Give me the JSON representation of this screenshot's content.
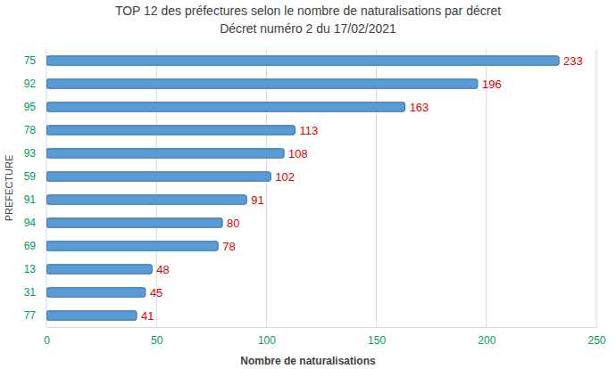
{
  "chart_data": {
    "type": "bar",
    "orientation": "horizontal",
    "title": "TOP 12 des préfectures selon le nombre de naturalisations par décret",
    "subtitle": "Décret numéro 2 du 17/02/2021",
    "xlabel": "Nombre de naturalisations",
    "ylabel": "PREFECTURE",
    "categories": [
      "75",
      "92",
      "95",
      "78",
      "93",
      "59",
      "91",
      "94",
      "69",
      "13",
      "31",
      "77"
    ],
    "values": [
      233,
      196,
      163,
      113,
      108,
      102,
      91,
      80,
      78,
      48,
      45,
      41
    ],
    "color": "#5b9bd5",
    "xlim": [
      0,
      250
    ],
    "xticks": [
      0,
      50,
      100,
      150,
      200,
      250
    ],
    "grid": true,
    "data_labels": true
  }
}
